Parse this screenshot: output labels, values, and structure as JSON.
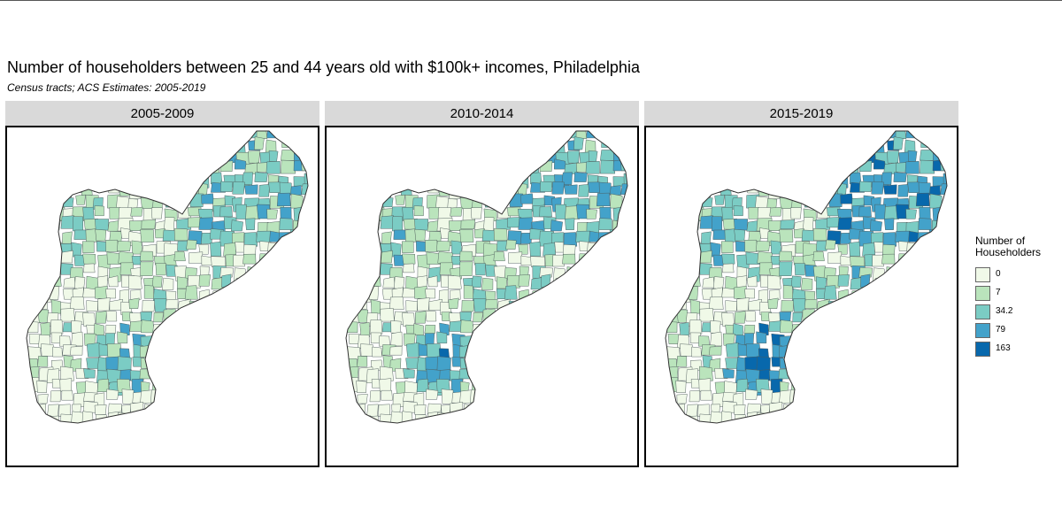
{
  "title": "Number of householders between 25 and 44 years old with $100k+ incomes, Philadelphia",
  "subtitle": "Census tracts; ACS Estimates: 2005-2019",
  "panels": [
    {
      "label": "2005-2009",
      "level": 0.35
    },
    {
      "label": "2010-2014",
      "level": 0.55
    },
    {
      "label": "2015-2019",
      "level": 0.8
    }
  ],
  "legend": {
    "title_line1": "Number of",
    "title_line2": "Householders",
    "items": [
      {
        "label": "0",
        "color": "#f0f9e8"
      },
      {
        "label": "7",
        "color": "#bae4bc"
      },
      {
        "label": "34.2",
        "color": "#7bccc4"
      },
      {
        "label": "79",
        "color": "#43a2ca"
      },
      {
        "label": "163",
        "color": "#0868ac"
      }
    ]
  }
}
